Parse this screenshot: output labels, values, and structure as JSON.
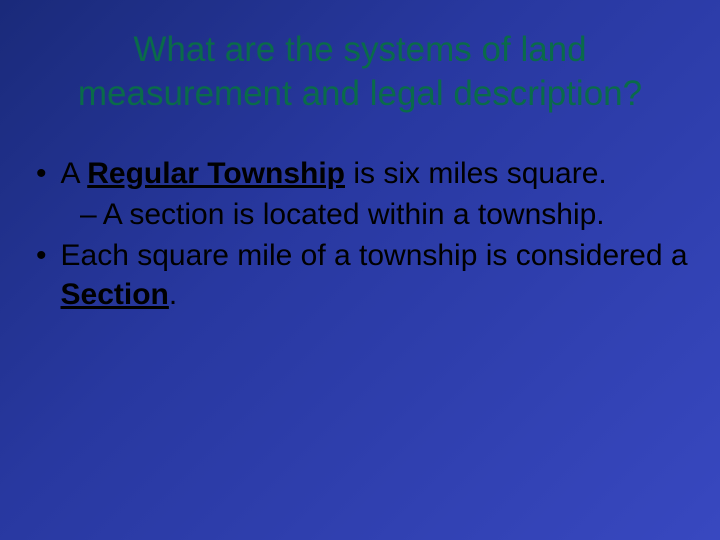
{
  "colors": {
    "background_gradient_start": "#1a2a7a",
    "background_gradient_mid": "#2838a0",
    "background_gradient_end": "#3848c0",
    "title_color": "#0a6b4a",
    "body_color": "#000000"
  },
  "typography": {
    "title_fontsize": 35,
    "body_fontsize": 30,
    "font_family": "Arial"
  },
  "title": "What are the systems of land measurement and legal description?",
  "bullets": [
    {
      "pre": "A ",
      "term": "Regular Township",
      "post": " is six miles square."
    },
    {
      "pre": "Each square mile of a township is considered a ",
      "term": "Section",
      "post": "."
    }
  ],
  "sub": {
    "text": "A section is located within a township."
  },
  "marks": {
    "bullet": "•",
    "dash": "–"
  }
}
